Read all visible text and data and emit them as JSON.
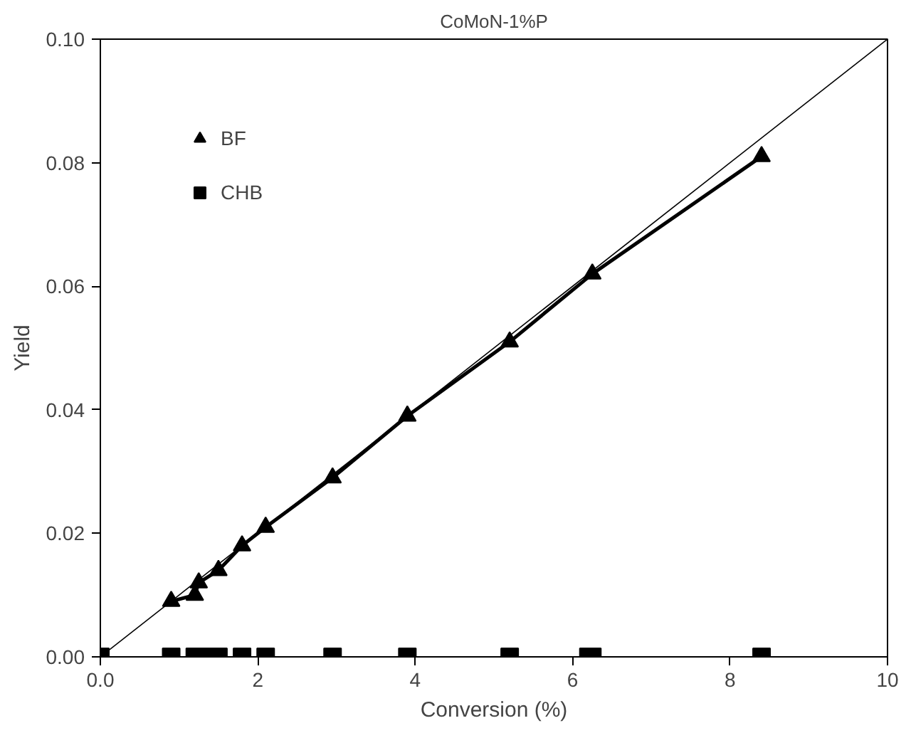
{
  "chart_data": {
    "type": "scatter",
    "title": "CoMoN-1%P",
    "xlabel": "Conversion (%)",
    "ylabel": "Yield",
    "xlim": [
      0,
      10
    ],
    "ylim": [
      0,
      0.1
    ],
    "xticks": [
      {
        "value": 0,
        "label": "0.0"
      },
      2,
      4,
      6,
      8,
      10
    ],
    "yticks": [
      {
        "value": 0,
        "label": "0.00"
      },
      {
        "value": 0.02,
        "label": "0.02"
      },
      {
        "value": 0.04,
        "label": "0.04"
      },
      {
        "value": 0.06,
        "label": "0.06"
      },
      {
        "value": 0.08,
        "label": "0.08"
      },
      {
        "value": 0.1,
        "label": "0.10"
      }
    ],
    "grid": false,
    "legend": "top left",
    "series": [
      {
        "name": "BF",
        "type": "line",
        "marker": "triangle",
        "color": "#000000",
        "x": [
          0.9,
          1.2,
          1.25,
          1.5,
          1.8,
          2.1,
          2.95,
          3.9,
          5.2,
          6.25,
          8.4
        ],
        "values": [
          0.009,
          0.01,
          0.012,
          0.014,
          0.018,
          0.021,
          0.029,
          0.039,
          0.051,
          0.062,
          0.081
        ]
      },
      {
        "name": "CHB",
        "type": "scatter",
        "marker": "square",
        "color": "#000000",
        "x": [
          0,
          0.9,
          1.2,
          1.3,
          1.5,
          1.8,
          2.1,
          2.95,
          3.9,
          5.2,
          6.2,
          6.25,
          8.4
        ],
        "values": [
          0,
          0,
          0,
          0,
          0,
          0,
          0,
          0,
          0,
          0,
          0,
          0,
          0
        ]
      },
      {
        "type": "line",
        "marker": "none",
        "color": "#000000",
        "x": [
          0,
          10
        ],
        "values": [
          0,
          0.1
        ]
      }
    ]
  }
}
